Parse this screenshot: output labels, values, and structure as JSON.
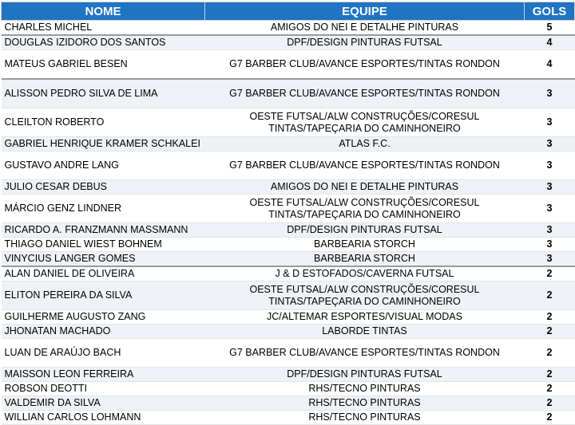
{
  "table": {
    "header": [
      "NOME",
      "EQUIPE",
      "GOLS"
    ],
    "rows": [
      [
        "CHARLES MICHEL",
        "AMIGOS DO NEI E DETALHE PINTURAS",
        "5"
      ],
      [
        "DOUGLAS IZIDORO DOS SANTOS",
        "DPF/DESIGN PINTURAS FUTSAL",
        "4"
      ],
      [
        "MATEUS GABRIEL BESEN",
        "G7 BARBER CLUB/AVANCE ESPORTES/TINTAS RONDON",
        "4"
      ],
      [
        "ALISSON PEDRO SILVA DE LIMA",
        "G7 BARBER CLUB/AVANCE ESPORTES/TINTAS RONDON",
        "3"
      ],
      [
        "CLEILTON ROBERTO",
        "OESTE FUTSAL/ALW CONSTRUÇÕES/CORESUL TINTAS/TAPEÇARIA DO CAMINHONEIRO",
        "3"
      ],
      [
        "GABRIEL HENRIQUE KRAMER SCHKALEI",
        "ATLAS F.C.",
        "3"
      ],
      [
        "GUSTAVO ANDRE LANG",
        "G7 BARBER CLUB/AVANCE ESPORTES/TINTAS RONDON",
        "3"
      ],
      [
        "JULIO CESAR DEBUS",
        "AMIGOS DO NEI E DETALHE PINTURAS",
        "3"
      ],
      [
        "MÁRCIO GENZ LINDNER",
        "OESTE FUTSAL/ALW CONSTRUÇÕES/CORESUL TINTAS/TAPEÇARIA DO CAMINHONEIRO",
        "3"
      ],
      [
        "RICARDO A. FRANZMANN MASSMANN",
        "DPF/DESIGN PINTURAS FUTSAL",
        "3"
      ],
      [
        "THIAGO DANIEL WIEST BOHNEM",
        "BARBEARIA STORCH",
        "3"
      ],
      [
        "VINYCIUS LANGER GOMES",
        "BARBEARIA STORCH",
        "3"
      ],
      [
        "ALAN DANIEL DE OLIVEIRA",
        "J & D ESTOFADOS/CAVERNA FUTSAL",
        "2"
      ],
      [
        "ELITON PEREIRA DA SILVA",
        "OESTE FUTSAL/ALW CONSTRUÇÕES/CORESUL TINTAS/TAPEÇARIA DO CAMINHONEIRO",
        "2"
      ],
      [
        "GUILHERME AUGUSTO ZANG",
        "JC/ALTEMAR ESPORTES/VISUAL MODAS",
        "2"
      ],
      [
        "JHONATAN MACHADO",
        "LABORDE TINTAS",
        "2"
      ],
      [
        "LUAN DE ARAÚJO BACH",
        "G7 BARBER CLUB/AVANCE ESPORTES/TINTAS RONDON",
        "2"
      ],
      [
        "MAISSON LEON FERREIRA",
        "DPF/DESIGN PINTURAS FUTSAL",
        "2"
      ],
      [
        "ROBSON DEOTTI",
        "RHS/TECNO PINTURAS",
        "2"
      ],
      [
        "VALDEMIR DA SILVA",
        "RHS/TECNO PINTURAS",
        "2"
      ],
      [
        "WILLIAN CARLOS LOHMANN",
        "RHS/TECNO PINTURAS",
        "2"
      ]
    ]
  }
}
